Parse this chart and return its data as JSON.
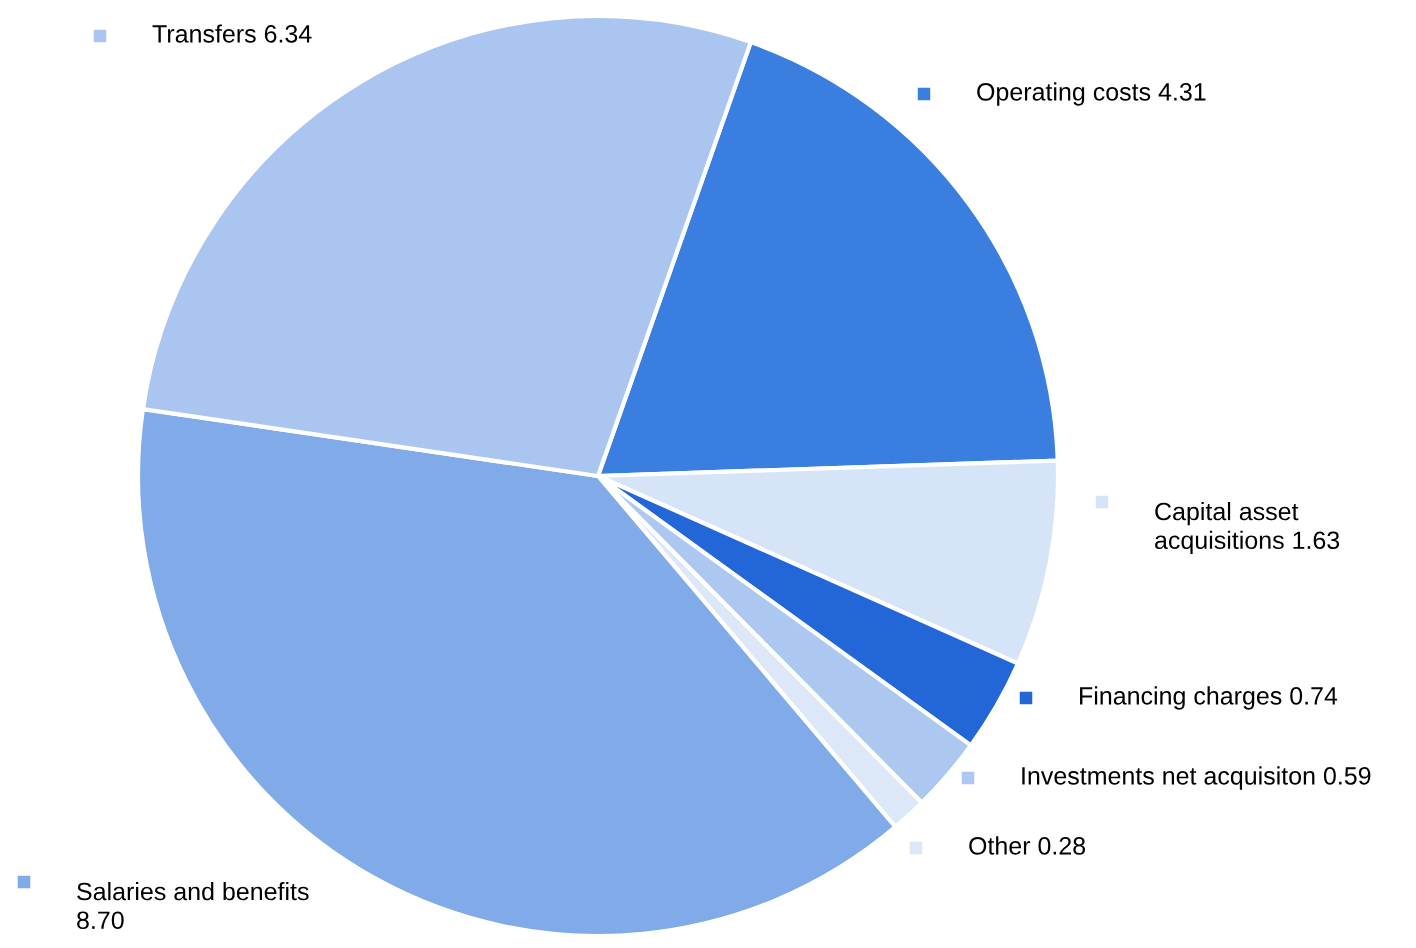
{
  "chart_data": {
    "type": "pie",
    "categories": [
      "Operating costs",
      "Capital asset\nacquisitions",
      "Financing charges",
      "Investments net acquisiton",
      "Other",
      "Salaries and benefits\n",
      "Transfers"
    ],
    "values": [
      4.31,
      1.63,
      0.74,
      0.59,
      0.28,
      8.7,
      6.34
    ],
    "value_labels": [
      "4.31",
      "1.63",
      "0.74",
      "0.59",
      "0.28",
      "8.70",
      "6.34"
    ],
    "legend": "right",
    "colors": [
      "#3a7fe0",
      "#d6e4f8",
      "#2266d8",
      "#adc8f0",
      "#dce8f8",
      "#80abe8",
      "#aac6f0"
    ]
  }
}
